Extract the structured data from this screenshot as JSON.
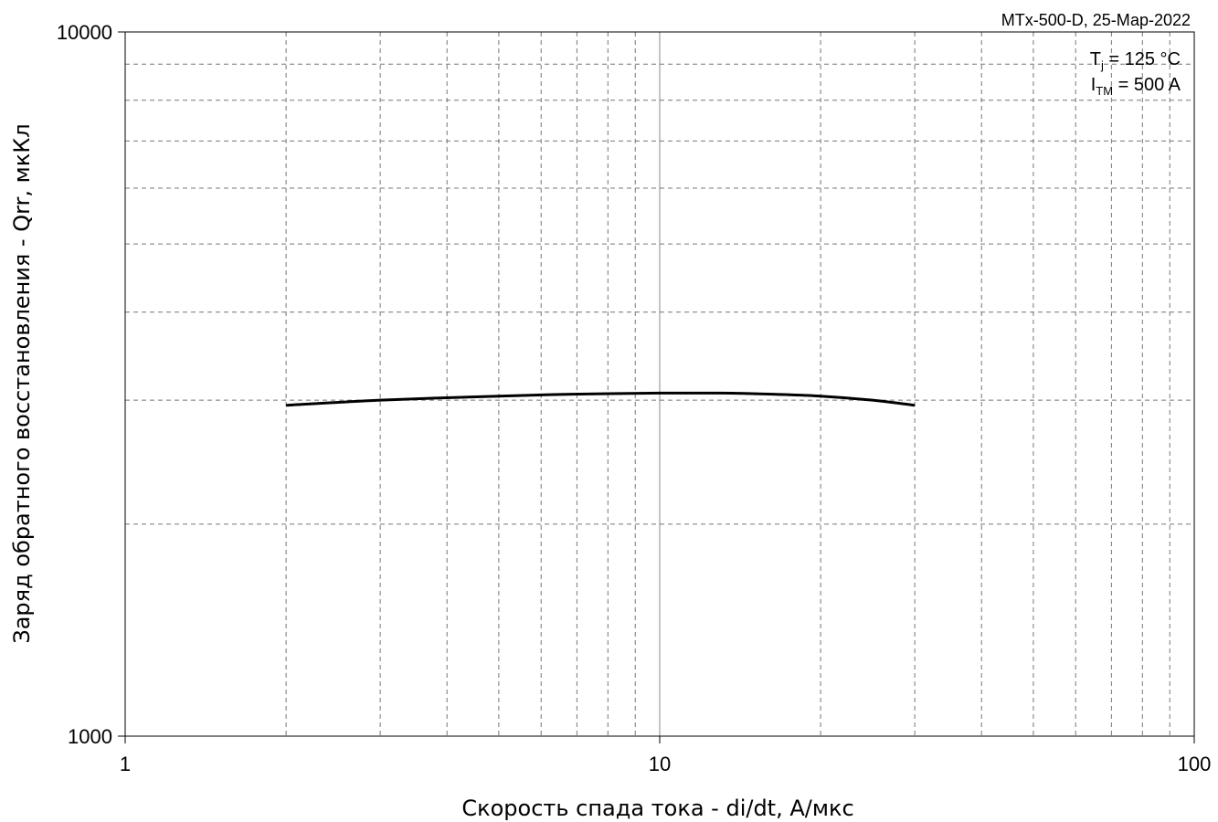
{
  "chart_data": {
    "type": "line",
    "title": "",
    "watermark": "MTx-500-D, 25-Мар-2022",
    "xlabel": "Скорость спада тока - di/dt, А/мкс",
    "ylabel": "Заряд обратного восстановления - Qrr, мкКл",
    "xscale": "log",
    "yscale": "log",
    "xlim": [
      1,
      100
    ],
    "ylim": [
      1000,
      10000
    ],
    "x_ticks": [
      "1",
      "10",
      "100"
    ],
    "y_ticks": [
      "1000",
      "10000"
    ],
    "grid": true,
    "conditions": [
      {
        "main": "T",
        "sub": "j",
        "rest": " = 125 °C"
      },
      {
        "main": "I",
        "sub": "TM",
        "rest": " = 500 A"
      }
    ],
    "series": [
      {
        "color": "#000000",
        "x": [
          2,
          3,
          5,
          7,
          10,
          13,
          16,
          20,
          25,
          30
        ],
        "y": [
          2950,
          3000,
          3040,
          3060,
          3070,
          3070,
          3060,
          3040,
          3000,
          2950
        ]
      }
    ]
  }
}
